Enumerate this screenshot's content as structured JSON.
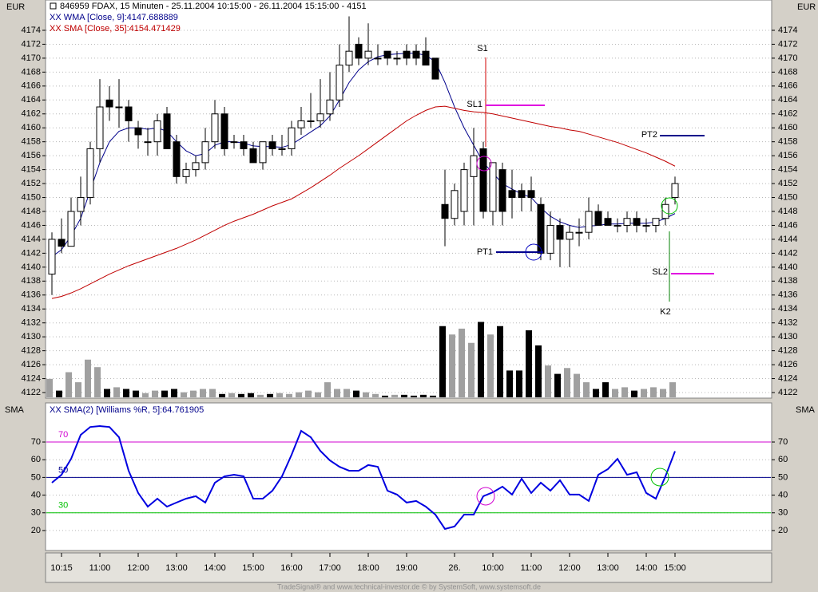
{
  "chart_data": [
    {
      "type": "candlestick",
      "title": "846959  FDAX, 15 Minuten - 25.11.2004 10:15:00 - 26.11.2004 15:15:00 - 4151",
      "y_axis_label": "EUR",
      "ylim": [
        4121.2,
        4178.35
      ],
      "yticks": [
        4122,
        4124,
        4126,
        4128,
        4130,
        4132,
        4134,
        4136,
        4138,
        4140,
        4142,
        4144,
        4146,
        4148,
        4150,
        4152,
        4154,
        4156,
        4158,
        4160,
        4162,
        4164,
        4166,
        4168,
        4170,
        4172,
        4174
      ],
      "grid": true,
      "up_color": "#ffffff",
      "down_color": "#000000",
      "open": [
        4139,
        4144,
        4143,
        4148,
        4150,
        4157,
        4164,
        4163,
        4163,
        4160,
        4158,
        4158,
        4162,
        4158,
        4153,
        4154,
        4155,
        4158,
        4162,
        4158,
        4158,
        4157,
        4155,
        4158,
        4157,
        4157,
        4160,
        4161,
        4161,
        4162,
        4164,
        4169,
        4172,
        4170,
        4170,
        4171,
        4170,
        4171,
        4171,
        4171,
        4170,
        4149,
        4147,
        4148,
        4153,
        4157,
        4148,
        4154,
        4151,
        4151,
        4151,
        4149,
        4142,
        4146,
        4144,
        4145,
        4145,
        4148,
        4147,
        4146,
        4146,
        4147,
        4146,
        4146,
        4147,
        4150
      ],
      "high": [
        4145,
        4147,
        4150,
        4153,
        4158,
        4167,
        4166,
        4167,
        4164,
        4161,
        4160,
        4162,
        4163,
        4159,
        4155,
        4156,
        4160,
        4164,
        4163,
        4159,
        4159,
        4158,
        4158,
        4159,
        4159,
        4161,
        4163,
        4165,
        4167,
        4168,
        4172,
        4176,
        4173,
        4175,
        4172,
        4171,
        4171,
        4172,
        4172,
        4173,
        4170,
        4154,
        4152,
        4155,
        4160,
        4158,
        4155,
        4155,
        4154,
        4152,
        4153,
        4150,
        4148,
        4147,
        4146,
        4147,
        4150,
        4149,
        4148,
        4147,
        4148,
        4148,
        4147,
        4147,
        4150,
        4153
      ],
      "low": [
        4136,
        4142,
        4143,
        4146,
        4149,
        4155,
        4161,
        4160,
        4158,
        4157,
        4156,
        4156,
        4157,
        4152,
        4152,
        4153,
        4154,
        4157,
        4156,
        4157,
        4156,
        4155,
        4154,
        4156,
        4156,
        4156,
        4159,
        4160,
        4160,
        4161,
        4163,
        4168,
        4169,
        4169,
        4169,
        4169,
        4169,
        4169,
        4169,
        4169,
        4167,
        4143,
        4146,
        4146,
        4146,
        4147,
        4146,
        4146,
        4147,
        4148,
        4148,
        4141,
        4141,
        4140,
        4140,
        4143,
        4144,
        4146,
        4146,
        4145,
        4145,
        4145,
        4145,
        4145,
        4146,
        4149
      ],
      "close": [
        4144,
        4143,
        4148,
        4150,
        4157,
        4163,
        4163,
        4163,
        4161,
        4159,
        4158,
        4161,
        4157,
        4153,
        4154,
        4155,
        4158,
        4162,
        4157,
        4158,
        4157,
        4155,
        4158,
        4157,
        4157,
        4160,
        4161,
        4161,
        4162,
        4164,
        4169,
        4171,
        4170,
        4171,
        4170,
        4170,
        4170,
        4170,
        4170,
        4169,
        4167,
        4147,
        4151,
        4154,
        4156,
        4148,
        4155,
        4148,
        4150,
        4150,
        4150,
        4142,
        4146,
        4144,
        4145,
        4145,
        4148,
        4146,
        4146,
        4146,
        4147,
        4146,
        4146,
        4147,
        4149,
        4152
      ],
      "volume": {
        "ylim": [
          0,
          100
        ],
        "up_color": "#a0a0a0",
        "down_color": "#000000",
        "values": [
          22,
          8,
          30,
          18,
          45,
          36,
          10,
          12,
          10,
          8,
          5,
          8,
          8,
          10,
          6,
          8,
          10,
          10,
          4,
          5,
          4,
          5,
          3,
          4,
          5,
          4,
          6,
          8,
          6,
          18,
          10,
          10,
          8,
          6,
          4,
          2,
          3,
          3,
          2,
          3,
          2,
          85,
          75,
          82,
          65,
          90,
          75,
          85,
          32,
          32,
          80,
          62,
          38,
          28,
          35,
          28,
          18,
          10,
          18,
          10,
          12,
          8,
          10,
          12,
          10,
          18
        ]
      },
      "series": [
        {
          "name": "XX WMA [Close, 9]:4147.688889",
          "color": "#00008b",
          "values": [
            4141.5,
            4142.5,
            4144.5,
            4147,
            4151,
            4155,
            4158,
            4159.5,
            4160,
            4160,
            4159.8,
            4160,
            4159.5,
            4158,
            4156.7,
            4156,
            4156.3,
            4157.5,
            4158,
            4158,
            4157.8,
            4157.4,
            4157.3,
            4157.3,
            4157.2,
            4157.6,
            4158.5,
            4159.4,
            4160.3,
            4161.7,
            4164,
            4166.5,
            4168.3,
            4169.5,
            4170.2,
            4170.5,
            4170.6,
            4170.7,
            4170.7,
            4170.4,
            4169.5,
            4166.5,
            4163,
            4160,
            4157.5,
            4155,
            4153.5,
            4152,
            4151.2,
            4150.5,
            4150,
            4148.5,
            4147.3,
            4146.5,
            4146,
            4145.7,
            4145.9,
            4146,
            4146.2,
            4146.2,
            4146.3,
            4146.3,
            4146.3,
            4146.5,
            4147,
            4147.7
          ]
        },
        {
          "name": "XX SMA [Close, 35]:4154.471429",
          "color": "#c00000",
          "values": [
            4135.5,
            4135.8,
            4136.3,
            4136.9,
            4137.6,
            4138.3,
            4139,
            4139.6,
            4140.2,
            4140.7,
            4141.2,
            4141.7,
            4142.2,
            4142.7,
            4143.3,
            4143.9,
            4144.6,
            4145.3,
            4146,
            4146.6,
            4147.1,
            4147.6,
            4148.2,
            4148.8,
            4149.3,
            4149.8,
            4150.6,
            4151.4,
            4152.3,
            4153.2,
            4154.2,
            4155.1,
            4156,
            4157,
            4158,
            4159,
            4160,
            4161,
            4161.8,
            4162.5,
            4163,
            4163.1,
            4162.8,
            4162.5,
            4162.3,
            4162.2,
            4162,
            4161.7,
            4161.4,
            4161.1,
            4160.8,
            4160.5,
            4160.2,
            4160,
            4159.7,
            4159.5,
            4159.1,
            4158.7,
            4158.3,
            4157.9,
            4157.4,
            4156.9,
            4156.4,
            4155.8,
            4155.2,
            4154.5
          ]
        }
      ],
      "annotations": [
        "S1",
        "SL1",
        "PT2",
        "PT1",
        "SL2",
        "K2"
      ]
    },
    {
      "type": "line",
      "y_axis_label": "SMA",
      "ylim": [
        8.7,
        92.1
      ],
      "yticks": [
        20,
        30,
        40,
        50,
        60,
        70
      ],
      "grid": true,
      "levels": [
        {
          "value": 70,
          "color": "#d000d0"
        },
        {
          "value": 50,
          "color": "#00008b"
        },
        {
          "value": 30,
          "color": "#00c000"
        }
      ],
      "categories": [
        null,
        "10:15",
        null,
        null,
        null,
        "11:00",
        null,
        null,
        null,
        "12:00",
        null,
        null,
        null,
        "13:00",
        null,
        null,
        null,
        "14:00",
        null,
        null,
        null,
        "15:00",
        null,
        null,
        null,
        "16:00",
        null,
        null,
        null,
        "17:00",
        null,
        null,
        null,
        "18:00",
        null,
        null,
        null,
        "19:00",
        null,
        null,
        null,
        null,
        "26.",
        null,
        null,
        null,
        "10:00",
        null,
        null,
        null,
        "11:00",
        null,
        null,
        null,
        "12:00",
        null,
        null,
        null,
        "13:00",
        null,
        null,
        null,
        "14:00",
        null,
        null,
        "15:00"
      ],
      "series": [
        {
          "name": "XX SMA(2) [Williams %R, 5]:64.761905",
          "color": "#0000e0",
          "values": [
            47,
            51.5,
            60.5,
            74,
            78.5,
            79,
            78.5,
            72.7,
            53.8,
            41.2,
            33.5,
            38,
            33.5,
            35.8,
            38,
            39.4,
            35.8,
            47,
            50.6,
            51.5,
            50.6,
            38,
            38,
            42.5,
            50.6,
            62.8,
            76.3,
            72.7,
            65,
            59.6,
            56,
            53.8,
            53.8,
            57,
            56,
            42.5,
            40.3,
            35.8,
            36.7,
            33.5,
            29,
            20.9,
            22.3,
            29,
            29,
            39.4,
            41.6,
            44.8,
            40.3,
            49.3,
            41.2,
            47,
            42.5,
            48.4,
            40.3,
            40.3,
            36.7,
            51.5,
            54.7,
            60.5,
            51.5,
            52.9,
            41.2,
            38,
            50.6,
            64.8
          ]
        }
      ],
      "footer": "TradeSignal® and www.technical-investor.de © by SystemSoft, www.systemsoft.de"
    }
  ]
}
